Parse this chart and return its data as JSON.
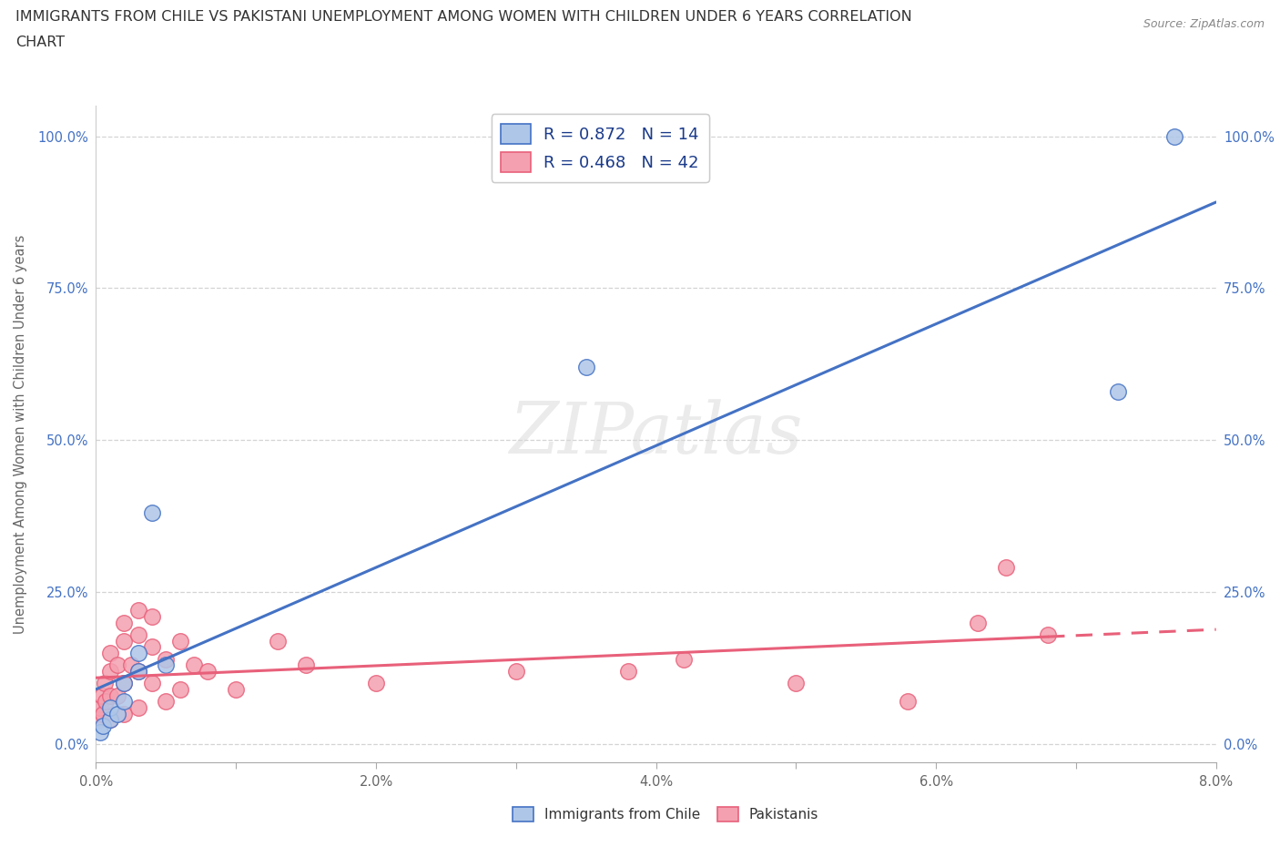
{
  "title_line1": "IMMIGRANTS FROM CHILE VS PAKISTANI UNEMPLOYMENT AMONG WOMEN WITH CHILDREN UNDER 6 YEARS CORRELATION",
  "title_line2": "CHART",
  "source": "Source: ZipAtlas.com",
  "ylabel": "Unemployment Among Women with Children Under 6 years",
  "xlim": [
    0.0,
    0.08
  ],
  "ylim": [
    0.0,
    1.05
  ],
  "xticks": [
    0.0,
    0.01,
    0.02,
    0.03,
    0.04,
    0.05,
    0.06,
    0.07,
    0.08
  ],
  "xticklabels": [
    "0.0%",
    "",
    "2.0%",
    "",
    "4.0%",
    "",
    "6.0%",
    "",
    "8.0%"
  ],
  "yticks": [
    0.0,
    0.25,
    0.5,
    0.75,
    1.0
  ],
  "yticklabels": [
    "0.0%",
    "25.0%",
    "50.0%",
    "75.0%",
    "100.0%"
  ],
  "chile_face_color": "#aec6e8",
  "chile_edge_color": "#4472c4",
  "chile_line_color": "#4472c4",
  "pak_face_color": "#f4a0b0",
  "pak_edge_color": "#e8607a",
  "pak_line_color": "#e8607a",
  "r_chile": 0.872,
  "n_chile": 14,
  "r_pakistan": 0.468,
  "n_pakistan": 42,
  "watermark": "ZIPatlas",
  "legend_label_chile": "Immigrants from Chile",
  "legend_label_pakistan": "Pakistanis",
  "chile_points_x": [
    0.0003,
    0.0005,
    0.001,
    0.001,
    0.0015,
    0.002,
    0.002,
    0.003,
    0.003,
    0.004,
    0.005,
    0.035,
    0.073,
    0.077
  ],
  "chile_points_y": [
    0.02,
    0.03,
    0.04,
    0.06,
    0.05,
    0.07,
    0.1,
    0.12,
    0.15,
    0.38,
    0.13,
    0.62,
    0.58,
    1.0
  ],
  "pakistan_points_x": [
    0.0002,
    0.0003,
    0.0004,
    0.0005,
    0.0006,
    0.0007,
    0.001,
    0.001,
    0.001,
    0.001,
    0.0015,
    0.0015,
    0.002,
    0.002,
    0.002,
    0.002,
    0.0025,
    0.003,
    0.003,
    0.003,
    0.003,
    0.004,
    0.004,
    0.004,
    0.005,
    0.005,
    0.006,
    0.006,
    0.007,
    0.008,
    0.01,
    0.013,
    0.015,
    0.02,
    0.03,
    0.038,
    0.042,
    0.05,
    0.058,
    0.063,
    0.065,
    0.068
  ],
  "pakistan_points_y": [
    0.04,
    0.06,
    0.08,
    0.05,
    0.1,
    0.07,
    0.04,
    0.08,
    0.12,
    0.15,
    0.08,
    0.13,
    0.05,
    0.1,
    0.17,
    0.2,
    0.13,
    0.06,
    0.12,
    0.18,
    0.22,
    0.1,
    0.16,
    0.21,
    0.07,
    0.14,
    0.09,
    0.17,
    0.13,
    0.12,
    0.09,
    0.17,
    0.13,
    0.1,
    0.12,
    0.12,
    0.14,
    0.1,
    0.07,
    0.2,
    0.29,
    0.18
  ],
  "background_color": "#ffffff",
  "grid_color": "#d0d0d0",
  "tick_color_y": "#4472c4",
  "tick_color_x": "#666666",
  "legend_text_color": "#1a3a8a"
}
